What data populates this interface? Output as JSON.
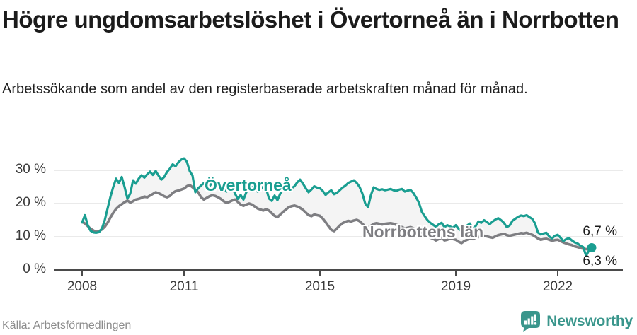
{
  "footer": {
    "source": "Källa: Arbetsförmedlingen",
    "brand": "Newsworthy"
  },
  "colors": {
    "accent_teal": "#1A9E91",
    "line_gray": "#7E7E82",
    "band_fill": "#F4F4F4",
    "gridline": "#DEDEDE",
    "axis": "#4A4A4A",
    "brand_teal": "#3A968C"
  },
  "chart_data": {
    "type": "line",
    "title": "Högre ungdomsarbetslöshet i Övertorneå än i Norrbotten",
    "subtitle": "Arbetssökande som andel av den registerbaserade arbetskraften månad för månad.",
    "x_start_year": 2008,
    "x_months_per_point": 1,
    "x_ticks": [
      "2008",
      "2011",
      "2015",
      "2019",
      "2022"
    ],
    "x_tick_years": [
      2008,
      2011,
      2015,
      2019,
      2022
    ],
    "y_ticks": [
      "0 %",
      "10 %",
      "20 %",
      "30 %"
    ],
    "y_tick_values": [
      0,
      10,
      20,
      30
    ],
    "ylim": [
      0,
      35
    ],
    "grid": true,
    "legend_position": "inline-labels",
    "series": [
      {
        "name": "Övertorneå",
        "color": "#1A9E91",
        "values": [
          14.3,
          16.5,
          13.5,
          11.8,
          11.3,
          11.2,
          11.4,
          12.5,
          15.0,
          18.5,
          22.0,
          25.0,
          27.5,
          26.2,
          28.0,
          25.0,
          21.5,
          23.0,
          27.0,
          26.0,
          27.5,
          28.5,
          27.8,
          28.8,
          29.6,
          28.6,
          29.8,
          28.4,
          27.2,
          28.0,
          29.5,
          30.5,
          31.8,
          31.2,
          32.4,
          33.2,
          33.6,
          32.6,
          29.8,
          28.4,
          23.4,
          24.6,
          25.4,
          26.2,
          24.6,
          25.2,
          26.4,
          25.6,
          26.0,
          25.2,
          24.2,
          23.6,
          24.4,
          25.0,
          23.0,
          21.4,
          22.6,
          21.2,
          23.4,
          24.6,
          25.0,
          24.4,
          23.6,
          24.2,
          25.2,
          24.6,
          21.5,
          20.8,
          22.4,
          21.0,
          23.0,
          24.2,
          24.8,
          25.4,
          24.6,
          25.2,
          26.4,
          27.2,
          26.0,
          24.6,
          23.4,
          24.2,
          25.2,
          24.8,
          24.6,
          23.8,
          22.6,
          23.4,
          24.0,
          22.8,
          23.2,
          24.0,
          24.8,
          25.4,
          26.2,
          26.6,
          27.0,
          26.2,
          25.0,
          23.0,
          20.0,
          18.9,
          22.5,
          24.9,
          24.4,
          24.1,
          24.3,
          24.0,
          24.2,
          24.4,
          24.0,
          23.8,
          24.2,
          24.4,
          23.6,
          23.9,
          24.1,
          23.2,
          21.8,
          20.2,
          17.5,
          16.2,
          15.0,
          14.2,
          13.6,
          13.0,
          13.8,
          14.2,
          12.9,
          13.5,
          13.1,
          12.7,
          13.5,
          12.4,
          11.6,
          12.6,
          13.4,
          14.0,
          12.4,
          13.2,
          14.6,
          14.2,
          15.0,
          14.4,
          13.8,
          14.6,
          15.2,
          15.6,
          15.0,
          14.2,
          12.9,
          13.4,
          14.8,
          15.4,
          16.0,
          16.4,
          16.2,
          16.5,
          15.9,
          15.4,
          14.0,
          11.3,
          10.7,
          11.0,
          11.2,
          10.1,
          9.5,
          10.3,
          10.6,
          9.7,
          8.7,
          9.3,
          9.6,
          8.9,
          8.3,
          8.0,
          7.3,
          6.9,
          4.3,
          5.8,
          6.7
        ]
      },
      {
        "name": "Norrbottens län",
        "color": "#7E7E82",
        "values": [
          14.5,
          14.0,
          13.2,
          12.4,
          11.9,
          11.5,
          11.7,
          12.2,
          13.0,
          14.2,
          15.8,
          17.2,
          18.4,
          19.2,
          19.8,
          20.4,
          20.9,
          20.3,
          20.7,
          21.2,
          21.4,
          21.7,
          22.1,
          21.9,
          22.4,
          22.9,
          23.4,
          23.1,
          22.7,
          22.2,
          21.9,
          22.3,
          23.2,
          23.7,
          23.9,
          24.2,
          24.5,
          25.2,
          25.6,
          24.9,
          24.2,
          23.4,
          21.9,
          21.2,
          21.7,
          22.2,
          22.5,
          22.3,
          21.9,
          21.4,
          20.7,
          20.2,
          20.5,
          20.9,
          21.2,
          20.5,
          19.7,
          19.3,
          19.7,
          20.0,
          19.7,
          19.1,
          18.5,
          18.2,
          17.9,
          18.3,
          17.9,
          17.1,
          16.3,
          15.9,
          16.7,
          17.5,
          18.2,
          18.9,
          19.2,
          19.4,
          19.1,
          18.7,
          18.1,
          17.3,
          16.5,
          16.2,
          16.7,
          16.5,
          16.3,
          15.5,
          14.4,
          13.2,
          12.1,
          11.7,
          12.5,
          13.4,
          14.1,
          14.5,
          14.8,
          14.6,
          14.9,
          15.1,
          14.7,
          13.9,
          13.1,
          12.7,
          13.3,
          13.9,
          14.1,
          13.9,
          13.7,
          13.9,
          14.0,
          14.1,
          13.9,
          13.6,
          13.3,
          12.9,
          12.5,
          12.7,
          12.9,
          12.6,
          12.1,
          11.6,
          11.1,
          10.6,
          10.1,
          9.7,
          9.4,
          8.9,
          9.3,
          9.7,
          8.9,
          9.1,
          9.5,
          9.3,
          9.1,
          8.5,
          8.1,
          8.7,
          9.1,
          9.5,
          9.3,
          9.7,
          9.9,
          10.1,
          10.3,
          10.1,
          9.9,
          9.7,
          10.1,
          10.5,
          10.7,
          10.9,
          10.5,
          10.3,
          10.5,
          10.7,
          10.9,
          11.1,
          11.0,
          11.2,
          10.9,
          10.6,
          10.1,
          9.5,
          9.1,
          9.3,
          9.4,
          9.1,
          8.8,
          9.0,
          9.1,
          8.7,
          8.3,
          8.0,
          7.7,
          7.5,
          7.1,
          6.9,
          6.6,
          6.4,
          6.3,
          6.2,
          6.3
        ]
      }
    ],
    "end_labels": [
      {
        "text": "6,7 %",
        "series": "Övertorneå",
        "value": 6.7
      },
      {
        "text": "6,3 %",
        "series": "Norrbottens län",
        "value": 6.3
      }
    ],
    "end_dot": {
      "series": "Övertorneå",
      "value": 6.7
    }
  }
}
